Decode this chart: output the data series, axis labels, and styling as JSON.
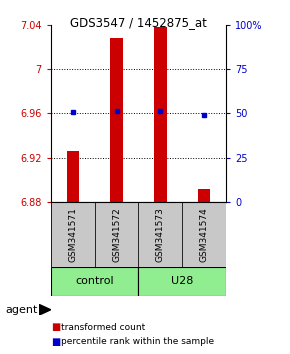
{
  "title": "GDS3547 / 1452875_at",
  "samples": [
    "GSM341571",
    "GSM341572",
    "GSM341573",
    "GSM341574"
  ],
  "bar_values": [
    6.926,
    7.028,
    7.038,
    6.892
  ],
  "bar_bottom": 6.88,
  "bar_color": "#CC0000",
  "percentile_values": [
    6.961,
    6.962,
    6.962,
    6.958
  ],
  "percentile_color": "#0000CC",
  "ylim_left": [
    6.88,
    7.04
  ],
  "yticks_left": [
    6.88,
    6.92,
    6.96,
    7.0,
    7.04
  ],
  "ytick_labels_left": [
    "6.88",
    "6.92",
    "6.96",
    "7",
    "7.04"
  ],
  "yticks_right": [
    0,
    25,
    50,
    75,
    100
  ],
  "ytick_labels_right": [
    "0",
    "25",
    "50",
    "75",
    "100%"
  ],
  "hlines": [
    6.92,
    6.96,
    7.0
  ],
  "left_color": "#CC0000",
  "right_color": "#0000CC",
  "group_defs": [
    {
      "name": "control",
      "color": "#90EE90",
      "xmin": -0.5,
      "xmax": 1.5
    },
    {
      "name": "U28",
      "color": "#90EE90",
      "xmin": 1.5,
      "xmax": 3.5
    }
  ],
  "sample_box_color": "#C8C8C8",
  "agent_label": "agent",
  "legend_items": [
    {
      "label": "transformed count",
      "color": "#CC0000"
    },
    {
      "label": "percentile rank within the sample",
      "color": "#0000CC"
    }
  ]
}
